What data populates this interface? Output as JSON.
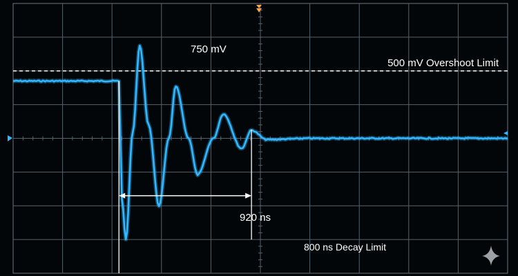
{
  "annotations": {
    "peak_label": "750 mV",
    "limit_label": "500 mV Overshoot Limit",
    "duration_label": "920 ns",
    "decay_label": "800 ns Decay Limit"
  },
  "colors": {
    "screen": "#030608",
    "grid": "#56636d",
    "trace": "#33b8ff",
    "marker": "#ffa24a",
    "annotation": "#ffffff"
  },
  "icons": {
    "trigger_marker": "trigger-down-icon",
    "ground_marker": "ground-level-icon",
    "trigger_level_marker": "trigger-level-icon",
    "watermark": "sparkle-icon"
  },
  "chart_data": {
    "type": "line",
    "grid": true,
    "series": [
      {
        "x": [
          0,
          1.7,
          2.14,
          2.2,
          2.28,
          2.42,
          2.56,
          2.74,
          2.95,
          3.15,
          3.29,
          3.55,
          3.73,
          4.05,
          4.25,
          4.62,
          4.82,
          5.13,
          6.0,
          10.0
        ],
        "y": [
          0.85,
          0.85,
          0.85,
          -0.9,
          -1.5,
          0.1,
          1.37,
          0.2,
          -1.0,
          0.0,
          0.77,
          0.0,
          -0.54,
          0.0,
          0.36,
          -0.15,
          0.12,
          -0.02,
          0.0,
          0.0
        ]
      }
    ],
    "reference_lines": [
      {
        "label": "500 mV Overshoot Limit",
        "y": 1.0,
        "style": "dashed"
      }
    ],
    "markers": [
      {
        "label": "750 mV",
        "x": 2.56,
        "y": 1.37
      },
      {
        "label": "920 ns",
        "x_start": 2.14,
        "x_end": 4.82,
        "style": "double-arrow"
      },
      {
        "label": "800 ns Decay Limit",
        "x": 4.82,
        "style": "vertical-line"
      }
    ],
    "xlim": [
      0,
      10
    ],
    "ylim": [
      -2,
      2
    ]
  }
}
